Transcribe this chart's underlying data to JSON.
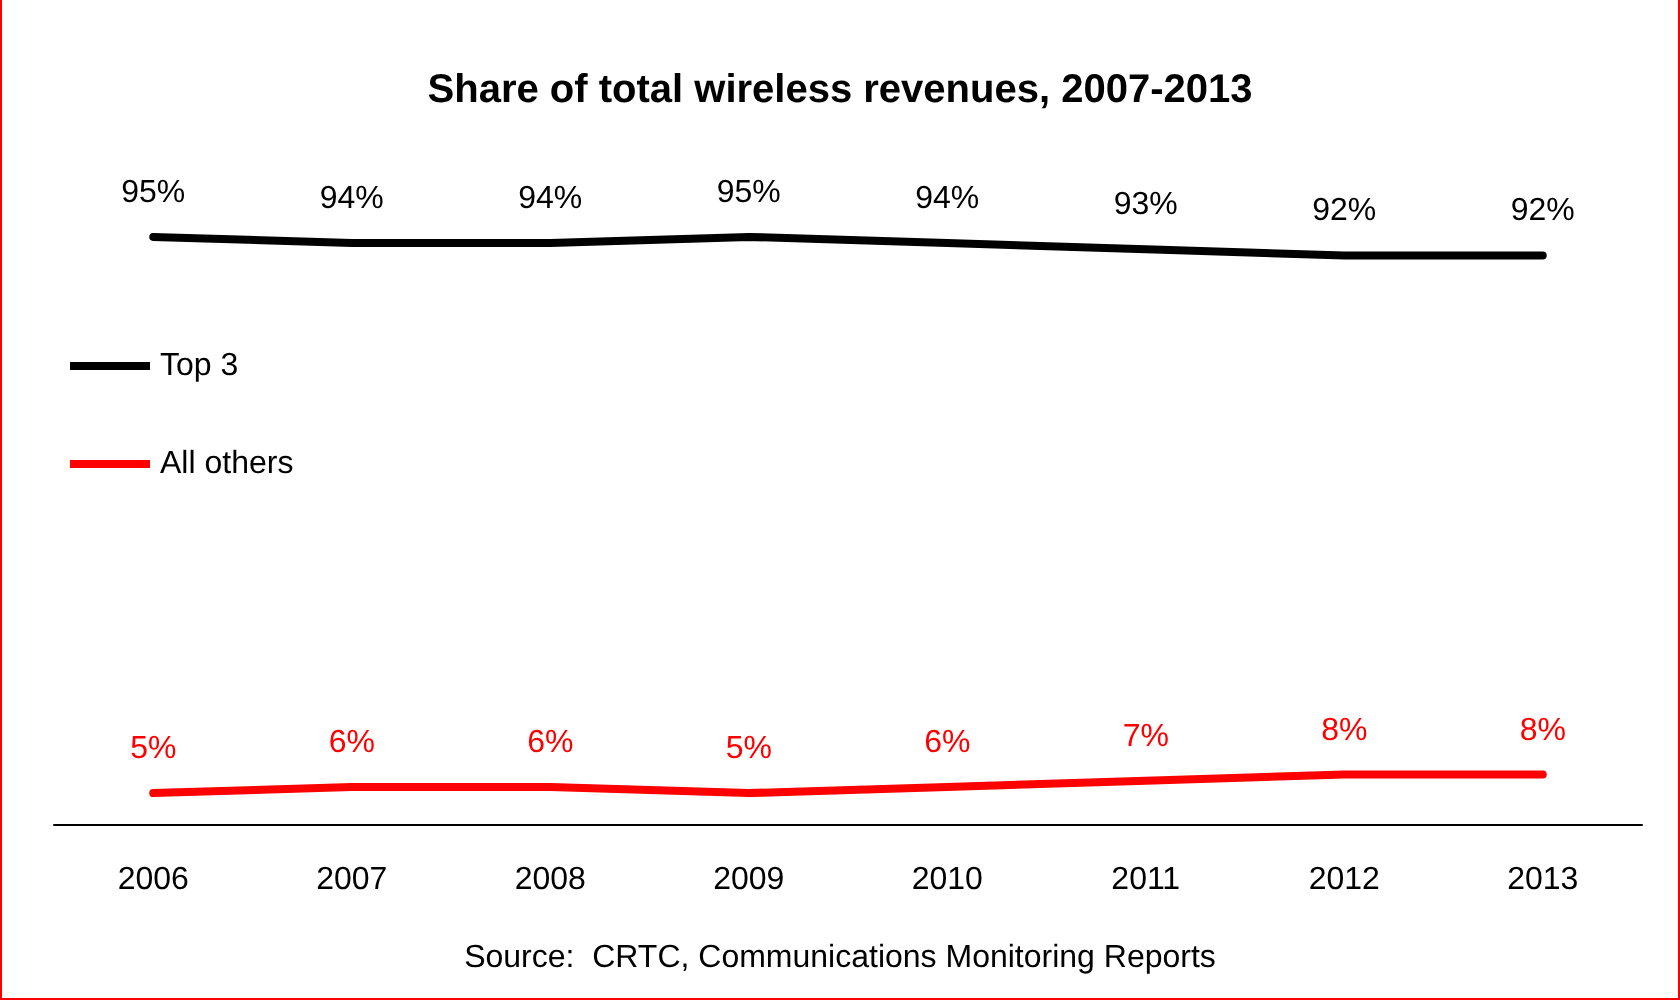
{
  "chart_data": {
    "type": "line",
    "title": "Share of total wireless revenues, 2007-2013",
    "categories": [
      "2006",
      "2007",
      "2008",
      "2009",
      "2010",
      "2011",
      "2012",
      "2013"
    ],
    "series": [
      {
        "name": "Top 3",
        "color": "#000000",
        "values": [
          95,
          94,
          94,
          95,
          94,
          93,
          92,
          92
        ],
        "value_labels": [
          "95%",
          "94%",
          "94%",
          "95%",
          "94%",
          "93%",
          "92%",
          "92%"
        ]
      },
      {
        "name": "All others",
        "color": "#ff0000",
        "values": [
          5,
          6,
          6,
          5,
          6,
          7,
          8,
          8
        ],
        "value_labels": [
          "5%",
          "6%",
          "6%",
          "5%",
          "6%",
          "7%",
          "8%",
          "8%"
        ]
      }
    ],
    "legend": "left",
    "grid": false,
    "marker": "none",
    "line_style": "solid",
    "annotations": [
      "Source:  CRTC, Communications Monitoring Reports"
    ]
  }
}
